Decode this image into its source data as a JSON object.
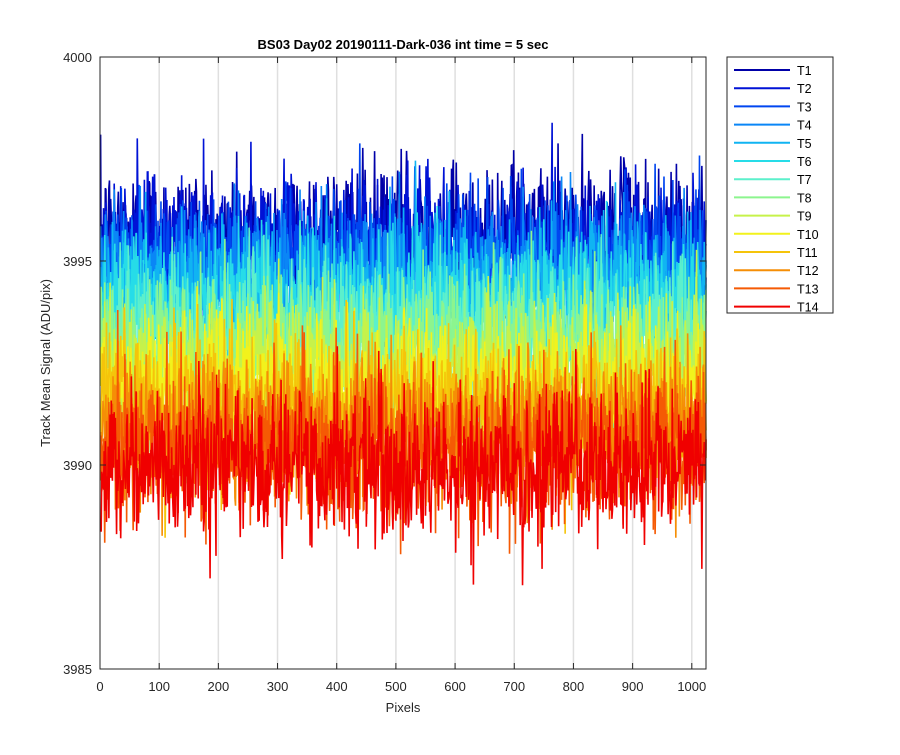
{
  "chart_data": {
    "type": "line",
    "title": "BS03 Day02 20190111-Dark-036 int time = 5 sec",
    "xlabel": "Pixels",
    "ylabel": "Track Mean Signal (ADU/pix)",
    "xlim": [
      0,
      1024
    ],
    "ylim": [
      3985,
      4000
    ],
    "x_ticks": [
      "0",
      "100",
      "200",
      "300",
      "400",
      "500",
      "600",
      "700",
      "800",
      "900",
      "1000"
    ],
    "y_ticks": [
      "3985",
      "3990",
      "3995",
      "4000"
    ],
    "x_tick_values": [
      0,
      100,
      200,
      300,
      400,
      500,
      600,
      700,
      800,
      900,
      1000
    ],
    "y_tick_values": [
      3985,
      3990,
      3995,
      4000
    ],
    "grid": "vertical",
    "legend_position": "outside-right",
    "n_points_per_series": 1024,
    "noise_sigma_approx": 0.9,
    "series": [
      {
        "name": "T1",
        "mean": 3995.6,
        "color": "#0000a8"
      },
      {
        "name": "T2",
        "mean": 3995.3,
        "color": "#0012d6"
      },
      {
        "name": "T3",
        "mean": 3995.0,
        "color": "#0046f0"
      },
      {
        "name": "T4",
        "mean": 3994.6,
        "color": "#0a86f6"
      },
      {
        "name": "T5",
        "mean": 3994.2,
        "color": "#10b4f2"
      },
      {
        "name": "T6",
        "mean": 3993.8,
        "color": "#26dce8"
      },
      {
        "name": "T7",
        "mean": 3993.3,
        "color": "#5cf0cc"
      },
      {
        "name": "T8",
        "mean": 3992.8,
        "color": "#8cf58e"
      },
      {
        "name": "T9",
        "mean": 3992.3,
        "color": "#c6f24a"
      },
      {
        "name": "T10",
        "mean": 3991.9,
        "color": "#f2f21c"
      },
      {
        "name": "T11",
        "mean": 3991.4,
        "color": "#f5c40a"
      },
      {
        "name": "T12",
        "mean": 3990.9,
        "color": "#f58e06"
      },
      {
        "name": "T13",
        "mean": 3990.4,
        "color": "#f55a04"
      },
      {
        "name": "T14",
        "mean": 3990.0,
        "color": "#f00000"
      }
    ]
  }
}
